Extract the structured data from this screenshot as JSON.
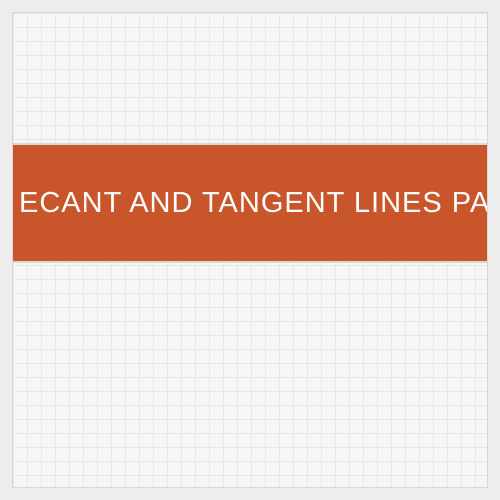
{
  "slide": {
    "title_text": "ECANT AND TANGENT LINES PART",
    "banner_color": "#c9552b",
    "text_color": "#ffffff",
    "background_color": "#f6f6f4",
    "grid_color": "#e8e7e5",
    "title_fontsize": 29,
    "grid_size": 14
  }
}
